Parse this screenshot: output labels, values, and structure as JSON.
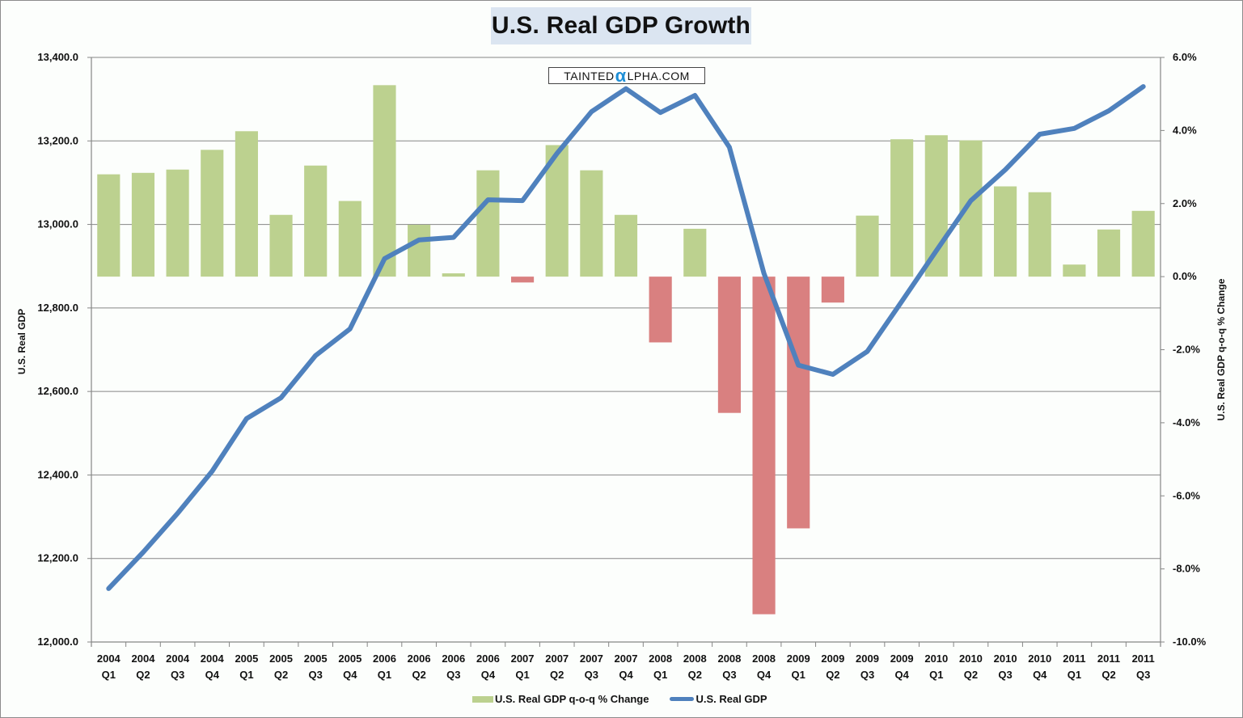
{
  "chart_data": {
    "type": "bar+line",
    "title": "U.S. Real GDP Growth",
    "watermark": {
      "prefix": "TAINTED",
      "alpha": "α",
      "suffix": "LPHA.COM"
    },
    "categories": [
      [
        "2004",
        "Q1"
      ],
      [
        "2004",
        "Q2"
      ],
      [
        "2004",
        "Q3"
      ],
      [
        "2004",
        "Q4"
      ],
      [
        "2005",
        "Q1"
      ],
      [
        "2005",
        "Q2"
      ],
      [
        "2005",
        "Q3"
      ],
      [
        "2005",
        "Q4"
      ],
      [
        "2006",
        "Q1"
      ],
      [
        "2006",
        "Q2"
      ],
      [
        "2006",
        "Q3"
      ],
      [
        "2006",
        "Q4"
      ],
      [
        "2007",
        "Q1"
      ],
      [
        "2007",
        "Q2"
      ],
      [
        "2007",
        "Q3"
      ],
      [
        "2007",
        "Q4"
      ],
      [
        "2008",
        "Q1"
      ],
      [
        "2008",
        "Q2"
      ],
      [
        "2008",
        "Q3"
      ],
      [
        "2008",
        "Q4"
      ],
      [
        "2009",
        "Q1"
      ],
      [
        "2009",
        "Q2"
      ],
      [
        "2009",
        "Q3"
      ],
      [
        "2009",
        "Q4"
      ],
      [
        "2010",
        "Q1"
      ],
      [
        "2010",
        "Q2"
      ],
      [
        "2010",
        "Q3"
      ],
      [
        "2010",
        "Q4"
      ],
      [
        "2011",
        "Q1"
      ],
      [
        "2011",
        "Q2"
      ],
      [
        "2011",
        "Q3"
      ]
    ],
    "series": [
      {
        "name": "U.S. Real GDP q-o-q % Change",
        "type": "bar",
        "axis": "right",
        "color_positive": "#bcd18f",
        "color_negative": "#d98080",
        "values": [
          2.8,
          2.84,
          2.93,
          3.47,
          3.98,
          1.69,
          3.04,
          2.07,
          5.24,
          1.42,
          0.09,
          2.91,
          -0.16,
          3.6,
          2.91,
          1.69,
          -1.8,
          1.31,
          -3.73,
          -9.24,
          -6.89,
          -0.71,
          1.67,
          3.76,
          3.87,
          3.73,
          2.47,
          2.31,
          0.33,
          1.29,
          1.8
        ]
      },
      {
        "name": "U.S. Real GDP",
        "type": "line",
        "axis": "left",
        "color": "#4f81bd",
        "values": [
          12128,
          12215,
          12308,
          12409,
          12535,
          12585,
          12686,
          12750,
          12918,
          12963,
          12969,
          13059,
          13057,
          13170,
          13270,
          13325,
          13268,
          13309,
          13185,
          12883,
          12663,
          12641,
          12696,
          12816,
          12937,
          13057,
          13131,
          13216,
          13230,
          13272,
          13330
        ]
      }
    ],
    "left_axis": {
      "label": "U.S. Real GDP",
      "range": [
        12000,
        13400
      ],
      "ticks": [
        "12,000.0",
        "12,200.0",
        "12,400.0",
        "12,600.0",
        "12,800.0",
        "13,000.0",
        "13,200.0",
        "13,400.0"
      ]
    },
    "right_axis": {
      "label": "U.S. Real GDP q-o-q % Change",
      "range": [
        -10,
        6
      ],
      "ticks": [
        "-10.0%",
        "-8.0%",
        "-6.0%",
        "-4.0%",
        "-2.0%",
        "0.0%",
        "2.0%",
        "4.0%",
        "6.0%"
      ]
    },
    "grid": true,
    "legend_position": "bottom",
    "legend": [
      "U.S. Real GDP q-o-q % Change",
      "U.S. Real GDP"
    ]
  }
}
